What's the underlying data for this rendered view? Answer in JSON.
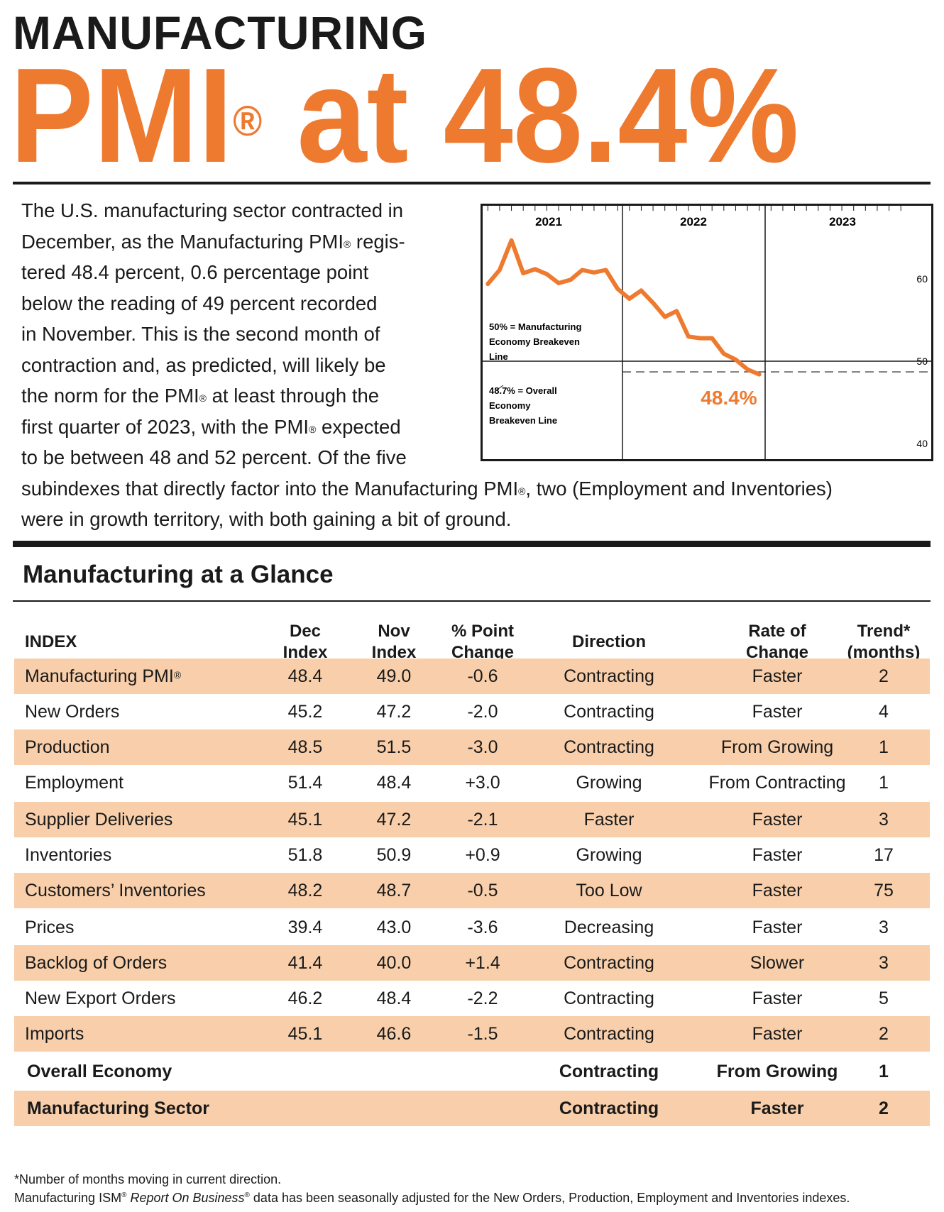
{
  "header": {
    "line1": "MANUFACTURING",
    "big_text": "PMI",
    "big_reg": "®",
    "big_rest": " at 48.4%"
  },
  "intro": {
    "text_parts": [
      "The U.S. manufacturing sector contracted in",
      "December, as the Manufacturing PMI",
      "®",
      " regis-",
      "tered 48.4 percent, 0.6 percentage point",
      "below the reading of 49 percent recorded",
      "in November. This is the second month of",
      "contraction and, as predicted, will likely be",
      "the norm for the PMI",
      "®",
      " at least through the",
      "first quarter of 2023, with the PMI",
      "®",
      " expected",
      "to be between 48 and 52 percent. Of the five",
      "subindexes that directly factor into the Manufacturing PMI",
      "®",
      ", two (Employment and Inventories)",
      "were in growth territory, with both gaining a bit of ground."
    ]
  },
  "chart_data": {
    "type": "line",
    "title": "",
    "years": [
      "2021",
      "2022",
      "2023"
    ],
    "y_ticks": [
      "60",
      "50",
      "40"
    ],
    "ylim": [
      38,
      69
    ],
    "x_months": [
      1,
      2,
      3,
      4,
      5,
      6,
      7,
      8,
      9,
      10,
      11,
      12,
      13,
      14,
      15,
      16,
      17,
      18,
      19,
      20,
      21,
      22,
      23,
      24
    ],
    "series": [
      {
        "name": "Manufacturing PMI",
        "values": [
          59.4,
          61.1,
          64.7,
          60.7,
          61.2,
          60.6,
          59.5,
          59.9,
          61.1,
          60.8,
          61.1,
          58.8,
          57.6,
          58.6,
          57.1,
          55.4,
          56.1,
          53.0,
          52.8,
          52.8,
          50.9,
          50.2,
          49.0,
          48.4
        ]
      }
    ],
    "annotations": {
      "line50_label_1": "50% = Manufacturing",
      "line50_label_2": "Economy Breakeven",
      "line50_label_3": "Line",
      "line487_label_1": "48.7% = Overall",
      "line487_label_2": "Economy",
      "line487_label_3": "Breakeven Line",
      "last_value_label": "48.4%"
    },
    "colors": {
      "line": "#ee7a30",
      "label": "#ee7a30"
    }
  },
  "glance": {
    "title": "Manufacturing at a Glance",
    "headers": {
      "index": "INDEX",
      "dec": [
        "Dec",
        "Index"
      ],
      "nov": [
        "Nov",
        "Index"
      ],
      "chg": [
        "% Point",
        "Change"
      ],
      "dir": "Direction",
      "rate": [
        "Rate of",
        "Change"
      ],
      "trend": [
        "Trend*",
        "(months)"
      ]
    },
    "rows": [
      {
        "name": "Manufacturing PMI",
        "reg": "®",
        "dec": "48.4",
        "nov": "49.0",
        "chg": "-0.6",
        "dir": "Contracting",
        "rate": "Faster",
        "trend": "2"
      },
      {
        "name": "New Orders",
        "dec": "45.2",
        "nov": "47.2",
        "chg": "-2.0",
        "dir": "Contracting",
        "rate": "Faster",
        "trend": "4"
      },
      {
        "name": "Production",
        "dec": "48.5",
        "nov": "51.5",
        "chg": "-3.0",
        "dir": "Contracting",
        "rate": "From Growing",
        "trend": "1"
      },
      {
        "name": "Employment",
        "dec": "51.4",
        "nov": "48.4",
        "chg": "+3.0",
        "dir": "Growing",
        "rate": "From Contracting",
        "trend": "1"
      },
      {
        "name": "Supplier Deliveries",
        "dec": "45.1",
        "nov": "47.2",
        "chg": "-2.1",
        "dir": "Faster",
        "rate": "Faster",
        "trend": "3"
      },
      {
        "name": "Inventories",
        "dec": "51.8",
        "nov": "50.9",
        "chg": "+0.9",
        "dir": "Growing",
        "rate": "Faster",
        "trend": "17"
      },
      {
        "name": "Customers’ Inventories",
        "dec": "48.2",
        "nov": "48.7",
        "chg": "-0.5",
        "dir": "Too Low",
        "rate": "Faster",
        "trend": "75"
      },
      {
        "name": "Prices",
        "dec": "39.4",
        "nov": "43.0",
        "chg": "-3.6",
        "dir": "Decreasing",
        "rate": "Faster",
        "trend": "3"
      },
      {
        "name": "Backlog of Orders",
        "dec": "41.4",
        "nov": "40.0",
        "chg": "+1.4",
        "dir": "Contracting",
        "rate": "Slower",
        "trend": "3"
      },
      {
        "name": "New Export Orders",
        "dec": "46.2",
        "nov": "48.4",
        "chg": "-2.2",
        "dir": "Contracting",
        "rate": "Faster",
        "trend": "5"
      },
      {
        "name": "Imports",
        "dec": "45.1",
        "nov": "46.6",
        "chg": "-1.5",
        "dir": "Contracting",
        "rate": "Faster",
        "trend": "2"
      }
    ],
    "summary_rows": [
      {
        "name": "Overall Economy",
        "dir": "Contracting",
        "rate": "From Growing",
        "trend": "1"
      },
      {
        "name": "Manufacturing Sector",
        "dir": "Contracting",
        "rate": "Faster",
        "trend": "2"
      }
    ]
  },
  "footnotes": {
    "note1": "*Number of months moving in current direction.",
    "note2_a": "Manufacturing ISM",
    "note2_reg": "®",
    "note2_b": " ",
    "note2_italic": "Report On Business",
    "note2_reg2": "®",
    "note2_c": " data has been seasonally adjusted for the New Orders, Production, Employment and Inventories indexes."
  },
  "colors": {
    "accent": "#ee7a30",
    "row_shade": "#f8cfaa",
    "text": "#1a1a1a"
  }
}
